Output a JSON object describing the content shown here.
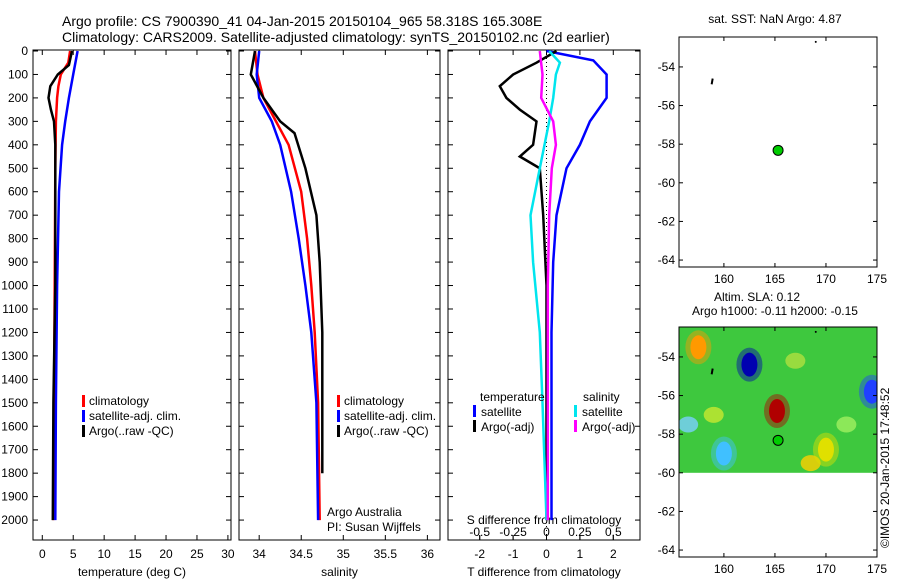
{
  "title_line1": "Argo profile: CS 7900390_41 04-Jan-2015 20150104_965 58.318S 165.308E",
  "title_line2": "Climatology: CARS2009. Satellite-adjusted climatology: synTS_20150102.nc (2d earlier)",
  "credit": "©IMOS 20-Jan-2015 17:48:52",
  "colors": {
    "climatology": "#ff0000",
    "satellite": "#0000ff",
    "argo": "#000000",
    "sat_s": "#00e5ee",
    "argo_s": "#ff00ff"
  },
  "chart_data": [
    {
      "type": "line",
      "name": "temperature",
      "xlabel": "temperature (deg C)",
      "xlim": [
        -1.5,
        30.5
      ],
      "ylim": [
        2085,
        0
      ],
      "xticks": [
        0,
        5,
        10,
        15,
        20,
        25,
        30
      ],
      "yticks": [
        0,
        100,
        200,
        300,
        400,
        500,
        600,
        700,
        800,
        900,
        1000,
        1100,
        1200,
        1300,
        1400,
        1500,
        1600,
        1700,
        1800,
        1900,
        2000
      ],
      "legend": [
        "climatology",
        "satellite-adj. clim.",
        "Argo(..raw -QC)"
      ],
      "series": [
        {
          "name": "climatology",
          "color": "#ff0000",
          "depth": [
            0,
            50,
            100,
            150,
            200,
            300,
            500,
            1000,
            1500,
            2000
          ],
          "values": [
            4.5,
            4.2,
            3.0,
            2.6,
            2.4,
            2.2,
            2.1,
            2.0,
            1.9,
            1.8
          ]
        },
        {
          "name": "satellite-adj. clim.",
          "color": "#0000ff",
          "depth": [
            0,
            100,
            200,
            300,
            400,
            600,
            1000,
            1500,
            2000
          ],
          "values": [
            5.7,
            5.0,
            4.3,
            3.7,
            3.2,
            2.7,
            2.4,
            2.2,
            2.1
          ]
        },
        {
          "name": "Argo(..raw -QC)",
          "color": "#000000",
          "depth": [
            0,
            60,
            100,
            150,
            200,
            250,
            300,
            400,
            1000,
            1500,
            2000
          ],
          "values": [
            4.8,
            4.3,
            2.5,
            1.3,
            1.0,
            1.4,
            1.9,
            2.1,
            2.1,
            1.8,
            1.7
          ]
        }
      ]
    },
    {
      "type": "line",
      "name": "salinity",
      "xlabel": "salinity",
      "xlim": [
        33.76,
        36.15
      ],
      "ylim": [
        2085,
        0
      ],
      "xticks": [
        34,
        34.5,
        35,
        35.5,
        36
      ],
      "legend": [
        "climatology",
        "satellite-adj. clim.",
        "Argo(..raw -QC)"
      ],
      "annotations": [
        "Argo Australia",
        "PI: Susan Wijffels"
      ],
      "series": [
        {
          "name": "climatology",
          "color": "#ff0000",
          "depth": [
            0,
            100,
            200,
            300,
            400,
            600,
            800,
            1000,
            1200,
            1500,
            2000
          ],
          "values": [
            33.95,
            33.98,
            34.05,
            34.2,
            34.35,
            34.5,
            34.57,
            34.62,
            34.66,
            34.7,
            34.72
          ]
        },
        {
          "name": "satellite-adj. clim.",
          "color": "#0000ff",
          "depth": [
            0,
            100,
            200,
            300,
            400,
            600,
            800,
            1000,
            1200,
            1500,
            2000
          ],
          "values": [
            34.0,
            33.97,
            34.0,
            34.15,
            34.25,
            34.38,
            34.47,
            34.55,
            34.62,
            34.68,
            34.7
          ]
        },
        {
          "name": "Argo(..raw -QC)",
          "color": "#000000",
          "depth": [
            0,
            100,
            200,
            300,
            350,
            500,
            700,
            900,
            1200,
            1500,
            1800
          ],
          "values": [
            33.95,
            33.9,
            34.05,
            34.25,
            34.42,
            34.55,
            34.68,
            34.72,
            34.75,
            34.75,
            34.75
          ]
        }
      ]
    },
    {
      "type": "line",
      "name": "difference",
      "xlabel": "T difference from climatology",
      "x2label": "S difference from climatology",
      "xlim": [
        -2.95,
        2.8
      ],
      "x2lim": [
        -0.7375,
        0.7
      ],
      "ylim": [
        2085,
        0
      ],
      "xticks": [
        -2,
        -1,
        0,
        1,
        2
      ],
      "x2ticks": [
        "-0.5",
        "-0.25",
        "0",
        "0.25",
        "0.5"
      ],
      "legend_groups": {
        "temperature": [
          "satellite",
          "Argo(-adj)"
        ],
        "salinity": [
          "satellite",
          "Argo(-adj)"
        ]
      },
      "series": [
        {
          "name": "T satellite",
          "color": "#0000ff",
          "axis": "T",
          "depth": [
            0,
            40,
            100,
            200,
            300,
            400,
            500,
            700,
            900,
            1200,
            2000
          ],
          "values": [
            0.0,
            1.4,
            1.8,
            1.8,
            1.3,
            1.0,
            0.6,
            0.3,
            0.2,
            0.15,
            0.15
          ]
        },
        {
          "name": "T Argo(-adj)",
          "color": "#000000",
          "axis": "T",
          "depth": [
            0,
            50,
            100,
            150,
            200,
            250,
            300,
            400,
            450,
            500,
            700,
            1000,
            2000
          ],
          "values": [
            0.3,
            -0.3,
            -1.0,
            -1.4,
            -1.2,
            -0.8,
            -0.3,
            -0.4,
            -0.8,
            -0.2,
            -0.1,
            0,
            0
          ]
        },
        {
          "name": "S satellite",
          "color": "#00e5ee",
          "axis": "S",
          "depth": [
            0,
            50,
            100,
            200,
            300,
            500,
            700,
            900,
            1200,
            1500,
            2000
          ],
          "values": [
            0.02,
            0.1,
            0.07,
            0.05,
            0.02,
            -0.05,
            -0.12,
            -0.1,
            -0.05,
            -0.03,
            0
          ]
        },
        {
          "name": "S Argo(-adj)",
          "color": "#ff00ff",
          "axis": "S",
          "depth": [
            0,
            100,
            200,
            300,
            400,
            500,
            700,
            1000,
            2000
          ],
          "values": [
            -0.05,
            -0.03,
            -0.04,
            0.05,
            0.07,
            0.04,
            0.02,
            0.01,
            0.01
          ]
        }
      ]
    },
    {
      "type": "scatter",
      "name": "sst-map",
      "title": "sat. SST: NaN Argo: 4.87",
      "xlim": [
        155.6,
        175
      ],
      "ylim": [
        -64.36,
        -52.45
      ],
      "xticks": [
        160,
        165,
        170,
        175
      ],
      "yticks": [
        -54,
        -56,
        -58,
        -60,
        -62,
        -64
      ],
      "points": [
        {
          "lon": 165.308,
          "lat": -58.318
        }
      ]
    },
    {
      "type": "heatmap",
      "name": "sla-map",
      "title": "Altim. SLA: 0.12",
      "subtitle": "Argo h1000: -0.11 h2000: -0.15",
      "xlim": [
        155.6,
        175
      ],
      "ylim": [
        -64.36,
        -52.45
      ],
      "xticks": [
        160,
        165,
        170,
        175
      ],
      "yticks": [
        -54,
        -56,
        -58,
        -60,
        -62,
        -64
      ],
      "data_lat_range": [
        -60,
        -52.45
      ],
      "features": [
        {
          "lon": 157.5,
          "lat": -53.5,
          "value": "high",
          "color": "#ff9900"
        },
        {
          "lon": 162.5,
          "lat": -54.4,
          "value": "low",
          "color": "#0000b0"
        },
        {
          "lon": 165.2,
          "lat": -56.8,
          "value": "high",
          "color": "#b00000"
        },
        {
          "lon": 174.5,
          "lat": -55.8,
          "value": "low",
          "color": "#2040ff"
        },
        {
          "lon": 160,
          "lat": -59,
          "value": "low",
          "color": "#40c0ff"
        },
        {
          "lon": 170,
          "lat": -58.8,
          "value": "high",
          "color": "#e0e000"
        }
      ],
      "points": [
        {
          "lon": 165.308,
          "lat": -58.318
        }
      ]
    }
  ]
}
